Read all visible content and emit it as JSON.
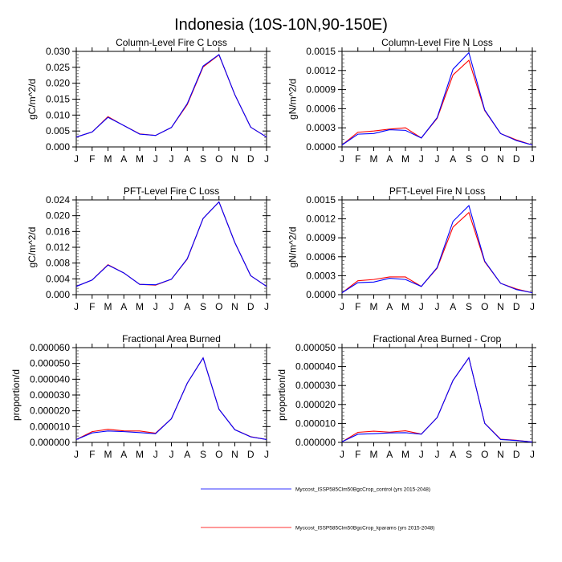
{
  "chart_data": {
    "title": "Indonesia (10S-10N,90-150E)",
    "legend": {
      "placement": "bottom-center",
      "entries": [
        {
          "name": "Myccost_ISSP585Clm50BgcCrop_control (yrs 2015-2048)",
          "color": "#3333ff"
        },
        {
          "name": "Myccost_ISSP585Clm50BgcCrop_kparams (yrs 2015-2048)",
          "color": "#ff3333"
        }
      ]
    },
    "series_colors": {
      "control": "#0000ff",
      "kparams": "#ff0000"
    },
    "panels": [
      {
        "type": "line",
        "title": "Column-Level Fire C Loss",
        "ylabel": "gC/m^2/d",
        "xlabel": "",
        "categories": [
          "J",
          "F",
          "M",
          "A",
          "M",
          "J",
          "J",
          "A",
          "S",
          "O",
          "N",
          "D",
          "J"
        ],
        "ylim": [
          0,
          0.03
        ],
        "yticks": [
          "0.000",
          "0.005",
          "0.010",
          "0.015",
          "0.020",
          "0.025",
          "0.030"
        ],
        "series": [
          {
            "name": "control",
            "values": [
              0.0031,
              0.0047,
              0.0093,
              0.0067,
              0.004,
              0.0036,
              0.0061,
              0.0136,
              0.0254,
              0.029,
              0.0164,
              0.0062,
              0.0031
            ]
          },
          {
            "name": "kparams",
            "values": [
              0.0031,
              0.0047,
              0.0095,
              0.0067,
              0.0041,
              0.0036,
              0.0061,
              0.0133,
              0.0251,
              0.0289,
              0.0164,
              0.0062,
              0.0031
            ]
          }
        ]
      },
      {
        "type": "line",
        "title": "Column-Level Fire N Loss",
        "ylabel": "gN/m^2/d",
        "xlabel": "",
        "categories": [
          "J",
          "F",
          "M",
          "A",
          "M",
          "J",
          "J",
          "A",
          "S",
          "O",
          "N",
          "D",
          "J"
        ],
        "ylim": [
          0,
          0.0015
        ],
        "yticks": [
          "0.0000",
          "0.0003",
          "0.0006",
          "0.0009",
          "0.0012",
          "0.0015"
        ],
        "series": [
          {
            "name": "control",
            "values": [
              3e-05,
              0.0002,
              0.00021,
              0.00027,
              0.00026,
              0.00014,
              0.00046,
              0.00122,
              0.00148,
              0.00058,
              0.00021,
              0.0001,
              3e-05
            ]
          },
          {
            "name": "kparams",
            "values": [
              3e-05,
              0.00023,
              0.00025,
              0.00028,
              0.0003,
              0.00014,
              0.00045,
              0.00113,
              0.00136,
              0.00057,
              0.00021,
              0.00011,
              3e-05
            ]
          }
        ]
      },
      {
        "type": "line",
        "title": "PFT-Level Fire C Loss",
        "ylabel": "gC/m^2/d",
        "xlabel": "",
        "categories": [
          "J",
          "F",
          "M",
          "A",
          "M",
          "J",
          "J",
          "A",
          "S",
          "O",
          "N",
          "D",
          "J"
        ],
        "ylim": [
          0,
          0.024
        ],
        "yticks": [
          "0.000",
          "0.004",
          "0.008",
          "0.012",
          "0.016",
          "0.020",
          "0.024"
        ],
        "series": [
          {
            "name": "control",
            "values": [
              0.0021,
              0.0037,
              0.0075,
              0.0055,
              0.0026,
              0.0025,
              0.0039,
              0.0091,
              0.0193,
              0.0235,
              0.0132,
              0.0048,
              0.0021
            ]
          },
          {
            "name": "kparams",
            "values": [
              0.0021,
              0.0037,
              0.0076,
              0.0055,
              0.0026,
              0.0024,
              0.0039,
              0.009,
              0.0193,
              0.0235,
              0.0132,
              0.0048,
              0.0021
            ]
          }
        ]
      },
      {
        "type": "line",
        "title": "PFT-Level Fire N Loss",
        "ylabel": "gN/m^2/d",
        "xlabel": "",
        "categories": [
          "J",
          "F",
          "M",
          "A",
          "M",
          "J",
          "J",
          "A",
          "S",
          "O",
          "N",
          "D",
          "J"
        ],
        "ylim": [
          0,
          0.0015
        ],
        "yticks": [
          "0.0000",
          "0.0003",
          "0.0006",
          "0.0009",
          "0.0012",
          "0.0015"
        ],
        "series": [
          {
            "name": "control",
            "values": [
              3e-05,
              0.00019,
              0.0002,
              0.00026,
              0.00024,
              0.00013,
              0.00043,
              0.00116,
              0.00141,
              0.00053,
              0.00018,
              8e-05,
              3e-05
            ]
          },
          {
            "name": "kparams",
            "values": [
              3e-05,
              0.00022,
              0.00024,
              0.00028,
              0.00028,
              0.00013,
              0.00042,
              0.00107,
              0.0013,
              0.00052,
              0.00018,
              9e-05,
              3e-05
            ]
          }
        ]
      },
      {
        "type": "line",
        "title": "Fractional Area Burned",
        "ylabel": "proportion/d",
        "xlabel": "",
        "categories": [
          "J",
          "F",
          "M",
          "A",
          "M",
          "J",
          "J",
          "A",
          "S",
          "O",
          "N",
          "D",
          "J"
        ],
        "ylim": [
          0,
          6e-05
        ],
        "yticks": [
          "0.000000",
          "0.000010",
          "0.000020",
          "0.000030",
          "0.000040",
          "0.000050",
          "0.000060"
        ],
        "series": [
          {
            "name": "control",
            "values": [
              1.8e-06,
              6e-06,
              7.2e-06,
              6.8e-06,
              6.2e-06,
              5.5e-06,
              1.5e-05,
              3.75e-05,
              5.35e-05,
              2.1e-05,
              8e-06,
              3.5e-06,
              1.8e-06
            ]
          },
          {
            "name": "kparams",
            "values": [
              1.8e-06,
              6.8e-06,
              8.3e-06,
              7.3e-06,
              7.2e-06,
              5.8e-06,
              1.5e-05,
              3.75e-05,
              5.35e-05,
              2.1e-05,
              8.1e-06,
              3.6e-06,
              1.8e-06
            ]
          }
        ]
      },
      {
        "type": "line",
        "title": "Fractional Area Burned - Crop",
        "ylabel": "proportion/d",
        "xlabel": "",
        "categories": [
          "J",
          "F",
          "M",
          "A",
          "M",
          "J",
          "J",
          "A",
          "S",
          "O",
          "N",
          "D",
          "J"
        ],
        "ylim": [
          0,
          5e-05
        ],
        "yticks": [
          "0.000000",
          "0.000010",
          "0.000020",
          "0.000030",
          "0.000040",
          "0.000050"
        ],
        "series": [
          {
            "name": "control",
            "values": [
              3e-07,
              4.3e-06,
              4.6e-06,
              5e-06,
              5.1e-06,
              4.3e-06,
              1.31e-05,
              3.27e-05,
              4.47e-05,
              1e-05,
              1.5e-06,
              1e-06,
              2e-07
            ]
          },
          {
            "name": "kparams",
            "values": [
              3e-07,
              5.3e-06,
              5.9e-06,
              5.4e-06,
              6.1e-06,
              4.4e-06,
              1.31e-05,
              3.27e-05,
              4.47e-05,
              1.01e-05,
              1.7e-06,
              1.1e-06,
              2e-07
            ]
          }
        ]
      }
    ]
  }
}
